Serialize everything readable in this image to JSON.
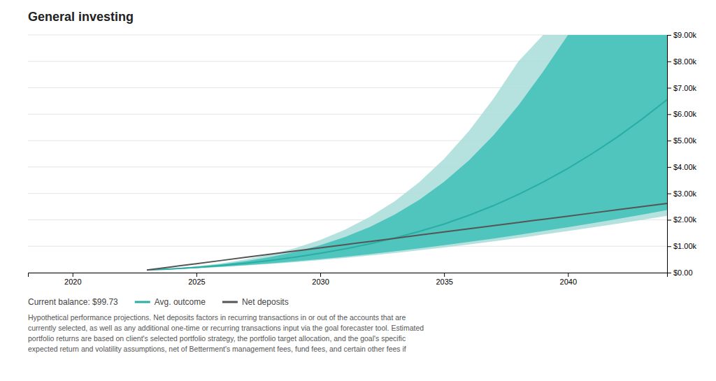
{
  "chart_data": {
    "type": "line",
    "title": "General investing",
    "x": [
      2023,
      2024,
      2025,
      2026,
      2027,
      2028,
      2029,
      2030,
      2031,
      2032,
      2033,
      2034,
      2035,
      2036,
      2037,
      2038,
      2039,
      2040,
      2041,
      2042,
      2043,
      2044
    ],
    "series": [
      {
        "type": "area",
        "color": "#a8ddd8",
        "lower": [
          100,
          128,
          168,
          215,
          270,
          332,
          400,
          476,
          558,
          647,
          743,
          845,
          953,
          1067,
          1186,
          1310,
          1440,
          1574,
          1712,
          1855,
          2001,
          2151
        ],
        "upper": [
          100,
          160,
          240,
          350,
          500,
          690,
          930,
          1240,
          1630,
          2110,
          2700,
          3430,
          4310,
          5360,
          6600,
          8000,
          9000,
          9000,
          9000,
          9000,
          9000,
          9000
        ]
      },
      {
        "type": "area",
        "color": "#3dbfb8",
        "lower": [
          100,
          130,
          173,
          224,
          284,
          352,
          428,
          512,
          603,
          702,
          807,
          919,
          1038,
          1163,
          1293,
          1430,
          1572,
          1721,
          1875,
          2034,
          2199,
          2369
        ],
        "upper": [
          100,
          152,
          222,
          315,
          438,
          595,
          790,
          1040,
          1350,
          1730,
          2195,
          2760,
          3440,
          4250,
          5210,
          6330,
          7620,
          9000,
          9000,
          9000,
          9000,
          9000
        ]
      },
      {
        "type": "line",
        "name": "Avg. outcome",
        "color": "#2aada3",
        "values": [
          100,
          140,
          200,
          270,
          360,
          465,
          590,
          735,
          900,
          1090,
          1310,
          1560,
          1840,
          2170,
          2540,
          2960,
          3430,
          3950,
          4520,
          5140,
          5820,
          6550
        ]
      },
      {
        "type": "line",
        "name": "Net deposits",
        "color": "#555555",
        "values": [
          100,
          220,
          340,
          460,
          580,
          700,
          820,
          940,
          1060,
          1180,
          1300,
          1420,
          1540,
          1660,
          1780,
          1900,
          2020,
          2140,
          2260,
          2380,
          2500,
          2620
        ]
      }
    ],
    "xlim": [
      2018.2,
      2044
    ],
    "xticks": [
      2020,
      2025,
      2030,
      2035,
      2040
    ],
    "ylim": [
      0,
      9000
    ],
    "yticks": [
      {
        "value": 0,
        "label": "$0.00"
      },
      {
        "value": 1000,
        "label": "$1.00k"
      },
      {
        "value": 2000,
        "label": "$2.00k"
      },
      {
        "value": 3000,
        "label": "$3.00k"
      },
      {
        "value": 4000,
        "label": "$4.00k"
      },
      {
        "value": 5000,
        "label": "$5.00k"
      },
      {
        "value": 6000,
        "label": "$6.00k"
      },
      {
        "value": 7000,
        "label": "$7.00k"
      },
      {
        "value": 8000,
        "label": "$8.00k"
      },
      {
        "value": 9000,
        "label": "$9.00k"
      }
    ],
    "grid": true,
    "legend": "bottom",
    "annotations": [
      "Current balance: $99.73",
      "Hypothetical performance projections. Net deposits factors in recurring transactions in or out of the accounts that are",
      "currently selected, as well as any additional one-time or recurring transactions input via the goal forecaster tool. Estimated",
      "portfolio returns are based on client's selected portfolio strategy, the portfolio target allocation, and the goal's specific",
      "expected return and volatility assumptions, net of Betterment's management fees, fund fees, and certain other fees if"
    ]
  }
}
